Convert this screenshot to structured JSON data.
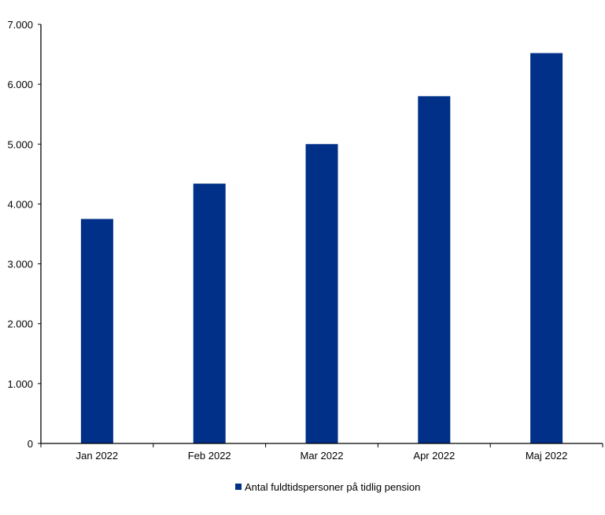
{
  "chart_data": {
    "type": "bar",
    "title": "",
    "xlabel": "",
    "ylabel": "",
    "categories": [
      "Jan 2022",
      "Feb 2022",
      "Mar 2022",
      "Apr 2022",
      "Maj 2022"
    ],
    "series": [
      {
        "name": "Antal fuldtidspersoner på tidlig pension",
        "values": [
          3750,
          4340,
          5000,
          5800,
          6520
        ],
        "color": "#003087"
      }
    ],
    "ylim": [
      0,
      7000
    ],
    "yticks": [
      0,
      1000,
      2000,
      3000,
      4000,
      5000,
      6000,
      7000
    ],
    "ytick_labels": [
      "0",
      "1.000",
      "2.000",
      "3.000",
      "4.000",
      "5.000",
      "6.000",
      "7.000"
    ],
    "grid": false,
    "legend": "bottom"
  }
}
